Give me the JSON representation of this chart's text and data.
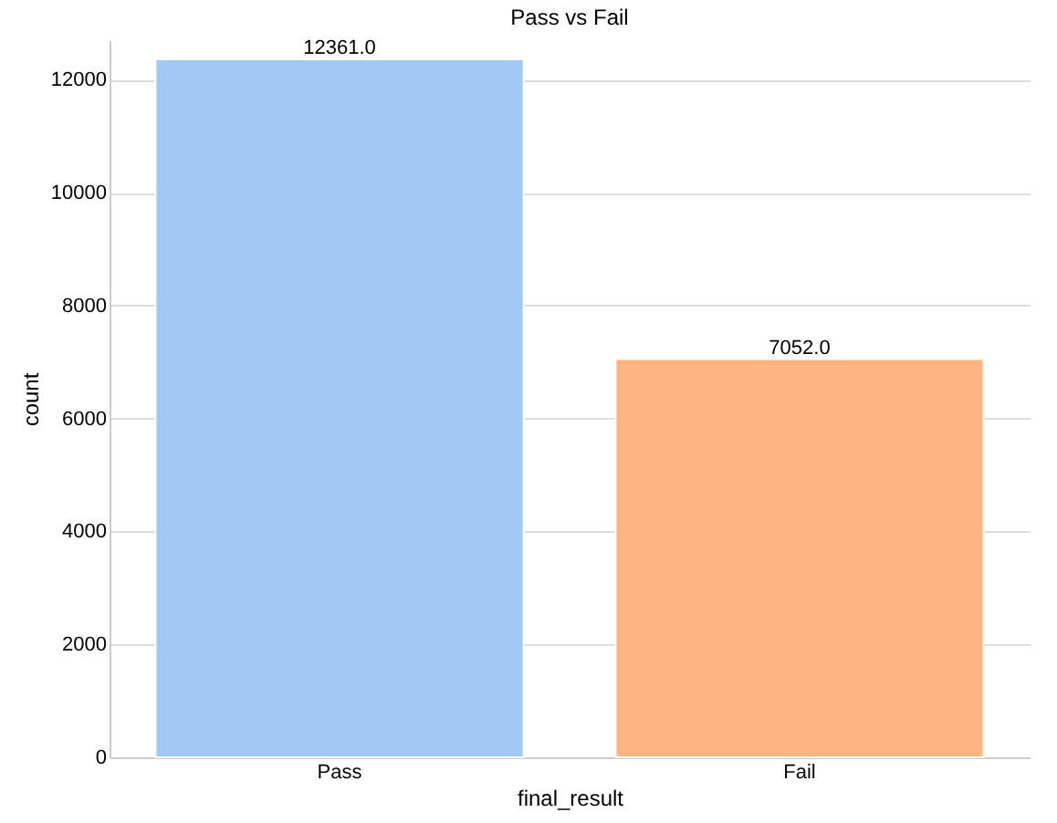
{
  "chart_data": {
    "type": "bar",
    "title": "Pass vs Fail",
    "xlabel": "final_result",
    "ylabel": "count",
    "categories": [
      "Pass",
      "Fail"
    ],
    "values": [
      12361,
      7052
    ],
    "colors": [
      "#a1c9f4",
      "#ffb482"
    ],
    "value_labels": [
      "12361.0",
      "7052.0"
    ],
    "ylim": [
      0,
      12700
    ],
    "yticks": [
      0,
      2000,
      4000,
      6000,
      8000,
      10000,
      12000
    ],
    "grid": "y"
  }
}
